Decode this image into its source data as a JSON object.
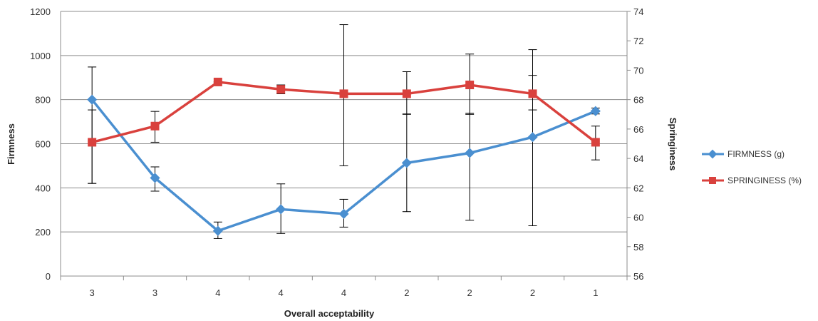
{
  "chart_data": {
    "type": "line",
    "title": "",
    "xlabel": "Overall acceptability",
    "ylabel_left": "Firmness",
    "ylabel_right": "Springiness",
    "categories": [
      "3",
      "3",
      "4",
      "4",
      "4",
      "2",
      "2",
      "2",
      "1"
    ],
    "ylim_left": [
      0,
      1200
    ],
    "yticks_left": [
      "0",
      "200",
      "400",
      "600",
      "800",
      "1000",
      "1200"
    ],
    "ylim_right": [
      56,
      74
    ],
    "yticks_right": [
      "56",
      "58",
      "60",
      "62",
      "64",
      "66",
      "68",
      "70",
      "72",
      "74"
    ],
    "grid": true,
    "legend_position": "right",
    "series": [
      {
        "name": "FIRMNESS (g)",
        "axis": "left",
        "color": "#4a8fd0",
        "marker": "diamond",
        "values": [
          800,
          445,
          205,
          303,
          282,
          513,
          558,
          630,
          748
        ],
        "err_low": [
          420,
          385,
          170,
          193,
          222,
          292,
          253,
          228,
          735
        ],
        "err_high": [
          948,
          495,
          245,
          418,
          348,
          735,
          738,
          910,
          762
        ]
      },
      {
        "name": "SPRINGINESS (%)",
        "axis": "right",
        "color": "#d9413d",
        "marker": "square",
        "values": [
          65.1,
          66.2,
          69.2,
          68.7,
          68.4,
          68.4,
          69.0,
          68.4,
          65.1
        ],
        "err_low": [
          62.3,
          65.1,
          69.2,
          68.4,
          63.5,
          67.0,
          67.0,
          67.3,
          63.9
        ],
        "err_high": [
          67.3,
          67.2,
          69.2,
          69.0,
          73.1,
          69.9,
          71.1,
          71.4,
          66.2
        ]
      }
    ]
  }
}
